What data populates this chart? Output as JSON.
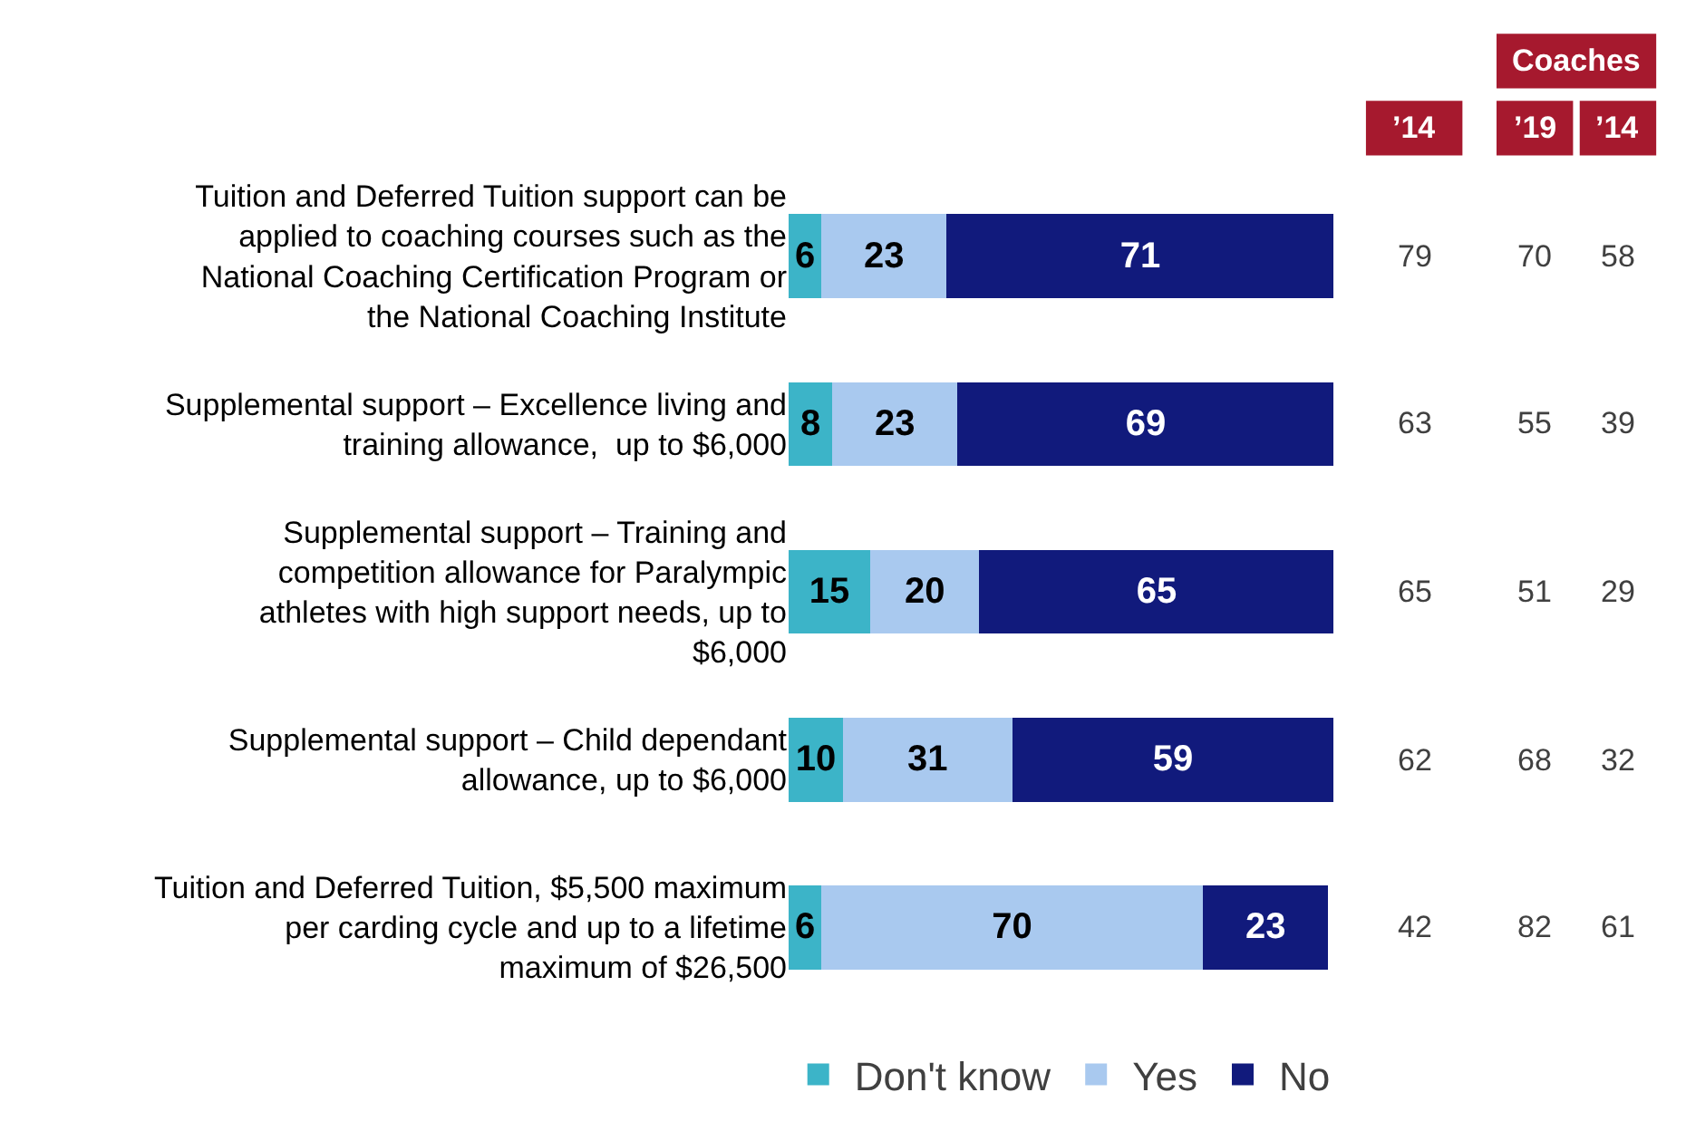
{
  "chart_data": [
    {
      "type": "bar",
      "orientation": "horizontal",
      "stacked": true,
      "data_labels": true,
      "legend": "bottom",
      "categories": [
        "Tuition and Deferred Tuition support can be applied to coaching courses such as the National Coaching Certification Program or the National Coaching Institute",
        "Supplemental support – Excellence living and training allowance,  up to $6,000",
        "Supplemental support – Training and competition allowance for Paralympic athletes with high support needs, up to $6,000",
        "Supplemental support – Child dependant allowance, up to $6,000",
        "Tuition and Deferred Tuition, $5,500 maximum per carding cycle and up to a lifetime maximum of $26,500"
      ],
      "series": [
        {
          "name": "Don't know",
          "color": "#3cb4c8",
          "values": [
            6,
            8,
            15,
            10,
            6
          ]
        },
        {
          "name": "Yes",
          "color": "#a9c9ef",
          "values": [
            23,
            23,
            20,
            31,
            70
          ]
        },
        {
          "name": "No",
          "color": "#111a7c",
          "values": [
            71,
            69,
            65,
            59,
            23
          ]
        }
      ]
    },
    {
      "type": "other",
      "annotations": [
        "Coaches",
        "’14",
        "’19",
        "’14",
        "79",
        "70",
        "58",
        "63",
        "55",
        "39",
        "65",
        "51",
        "29",
        "62",
        "68",
        "32",
        "42",
        "82",
        "61"
      ]
    }
  ]
}
